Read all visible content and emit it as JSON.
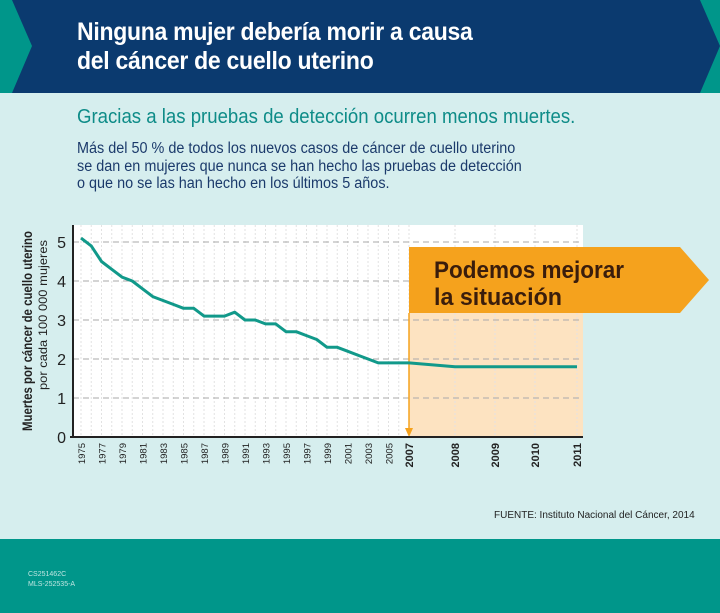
{
  "header": {
    "title_line1": "Ninguna mujer debería morir a causa",
    "title_line2": "del cáncer de cuello uterino"
  },
  "subtitle": "Gracias a las pruebas de detección ocurren menos muertes.",
  "body": "Más del 50 % de todos los nuevos casos de cáncer de cuello uterino\nse dan en mujeres que nunca se han hecho las pruebas de detección\no que no se las han hecho en los últimos 5 años.",
  "colors": {
    "navy": "#0b3a6f",
    "teal": "#00968a",
    "background": "#d6eeee",
    "orange": "#f5a21d",
    "orange_light": "#fde3c1",
    "line": "#11998a"
  },
  "chart_data": {
    "type": "line",
    "title": "",
    "ylabel": "Muertes por cáncer de cuello uterino",
    "ylabel_sub": "por cada 100 000 mujeres",
    "xlabel": "",
    "ylim": [
      0,
      5
    ],
    "yticks": [
      "0",
      "1",
      "2",
      "3",
      "4",
      "5"
    ],
    "grid": true,
    "x": [
      1975,
      1976,
      1977,
      1978,
      1979,
      1980,
      1981,
      1982,
      1983,
      1984,
      1985,
      1986,
      1987,
      1988,
      1989,
      1990,
      1991,
      1992,
      1993,
      1994,
      1995,
      1996,
      1997,
      1998,
      1999,
      2000,
      2001,
      2002,
      2003,
      2004,
      2005,
      2006,
      2007,
      2008,
      2009,
      2010,
      2011
    ],
    "values": [
      5.1,
      4.9,
      4.5,
      4.3,
      4.1,
      4.0,
      3.8,
      3.6,
      3.5,
      3.4,
      3.3,
      3.3,
      3.1,
      3.1,
      3.1,
      3.2,
      3.0,
      3.0,
      2.9,
      2.9,
      2.7,
      2.7,
      2.6,
      2.5,
      2.3,
      2.3,
      2.2,
      2.1,
      2.0,
      1.9,
      1.9,
      1.9,
      1.9,
      1.8,
      1.8,
      1.8,
      1.8
    ],
    "xticks": [
      "1975",
      "1977",
      "1979",
      "1981",
      "1983",
      "1985",
      "1987",
      "1989",
      "1991",
      "1993",
      "1995",
      "1997",
      "1999",
      "2001",
      "2003",
      "2005",
      "2007",
      "2008",
      "2009",
      "2010",
      "2011"
    ],
    "highlight": {
      "from": 2007,
      "to": 2011,
      "label_line1": "Podemos mejorar",
      "label_line2": "la situación"
    }
  },
  "source": "FUENTE: Instituto Nacional del Cáncer, 2014",
  "footer": {
    "code1": "CS251462C",
    "code2": "MLS-252535-A"
  }
}
